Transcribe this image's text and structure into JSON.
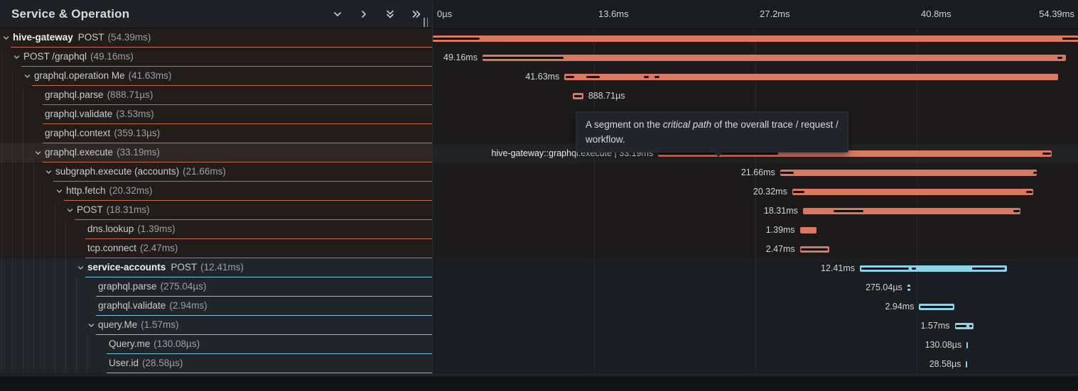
{
  "header": {
    "title": "Service & Operation",
    "icons": [
      "chevron-down-icon",
      "chevron-right-icon",
      "double-chevron-down-icon",
      "double-chevron-right-icon",
      "resize-grip-icon"
    ]
  },
  "timeline": {
    "total_ms": 54.39,
    "ticks": [
      {
        "label": "0µs",
        "percent": 0
      },
      {
        "label": "13.6ms",
        "percent": 25
      },
      {
        "label": "27.2ms",
        "percent": 50
      },
      {
        "label": "40.8ms",
        "percent": 75
      },
      {
        "label": "54.39ms",
        "percent": 100
      }
    ]
  },
  "colors": {
    "red_bar": "#d9795f",
    "blue_bar": "#8fd3e8",
    "red_line": "#c96a4f",
    "blue_line": "#7cc7df",
    "critical_path": "#0d0e10"
  },
  "tooltip": {
    "prefix": "A segment on the ",
    "emphasis": "critical path",
    "middle": " of the overall trace / request /",
    "line2": "workflow."
  },
  "rows": [
    {
      "service": "hive-gateway",
      "name": "POST",
      "duration": "(54.39ms)",
      "level": 0,
      "chevron": true,
      "color": "red",
      "hovered": false,
      "bar": [
        0,
        54.39
      ],
      "critical": [
        [
          0,
          3.95
        ],
        [
          53.1,
          54.39
        ]
      ],
      "label": "",
      "label_side": "none"
    },
    {
      "service": null,
      "name": "POST /graphql",
      "duration": "(49.16ms)",
      "level": 1,
      "chevron": true,
      "color": "red",
      "hovered": false,
      "bar": [
        4.19,
        53.35
      ],
      "critical": [
        [
          4.19,
          11.0
        ],
        [
          52.65,
          53.1
        ]
      ],
      "label": "49.16ms",
      "label_side": "left"
    },
    {
      "service": null,
      "name": "graphql.operation Me",
      "duration": "(41.63ms)",
      "level": 2,
      "chevron": true,
      "color": "red",
      "hovered": false,
      "bar": [
        11.1,
        52.73
      ],
      "critical": [
        [
          11.2,
          11.9
        ],
        [
          12.95,
          14.05
        ],
        [
          17.8,
          18.2
        ],
        [
          18.7,
          19.1
        ]
      ],
      "label": "41.63ms",
      "label_side": "left"
    },
    {
      "service": null,
      "name": "graphql.parse",
      "duration": "(888.71µs)",
      "level": 3,
      "chevron": false,
      "color": "red",
      "hovered": false,
      "bar": [
        11.8,
        12.69
      ],
      "critical": [
        [
          11.9,
          12.6
        ]
      ],
      "label": "888.71µs",
      "label_side": "right"
    },
    {
      "service": null,
      "name": "graphql.validate",
      "duration": "(3.53ms)",
      "level": 3,
      "chevron": false,
      "color": "red",
      "hovered": false,
      "bar": [
        14.2,
        17.73
      ],
      "critical": [
        [
          14.3,
          17.65
        ]
      ],
      "label": "3.53ms",
      "label_side": "right"
    },
    {
      "service": null,
      "name": "graphql.context",
      "duration": "(359.13µs)",
      "level": 3,
      "chevron": false,
      "color": "red",
      "hovered": false,
      "bar": [
        14.5,
        14.86
      ],
      "critical": [],
      "label": "359.13µs",
      "label_side": "right"
    },
    {
      "service": null,
      "name": "graphql.execute",
      "duration": "(33.19ms)",
      "level": 3,
      "chevron": true,
      "color": "red",
      "hovered": true,
      "bar": [
        19.0,
        52.19
      ],
      "critical": [
        [
          19.0,
          29.1
        ],
        [
          51.4,
          52.1
        ]
      ],
      "label": "hive-gateway::graphql.execute | 33.19ms",
      "label_side": "left"
    },
    {
      "service": null,
      "name": "subgraph.execute (accounts)",
      "duration": "(21.66ms)",
      "level": 4,
      "chevron": true,
      "color": "red",
      "hovered": false,
      "bar": [
        29.28,
        50.94
      ],
      "critical": [
        [
          29.3,
          30.4
        ],
        [
          50.6,
          50.9
        ]
      ],
      "label": "21.66ms",
      "label_side": "left"
    },
    {
      "service": null,
      "name": "http.fetch",
      "duration": "(20.32ms)",
      "level": 5,
      "chevron": true,
      "color": "red",
      "hovered": false,
      "bar": [
        30.3,
        50.62
      ],
      "critical": [
        [
          30.35,
          31.3
        ],
        [
          50.0,
          50.55
        ]
      ],
      "label": "20.32ms",
      "label_side": "left"
    },
    {
      "service": null,
      "name": "POST",
      "duration": "(18.31ms)",
      "level": 6,
      "chevron": true,
      "color": "red",
      "hovered": false,
      "bar": [
        31.2,
        49.51
      ],
      "critical": [
        [
          33.8,
          36.3
        ],
        [
          48.95,
          49.45
        ]
      ],
      "label": "18.31ms",
      "label_side": "left"
    },
    {
      "service": null,
      "name": "dns.lookup",
      "duration": "(1.39ms)",
      "level": 7,
      "chevron": false,
      "color": "red",
      "hovered": false,
      "bar": [
        30.95,
        32.34
      ],
      "critical": [],
      "label": "1.39ms",
      "label_side": "left"
    },
    {
      "service": null,
      "name": "tcp.connect",
      "duration": "(2.47ms)",
      "level": 7,
      "chevron": false,
      "color": "red",
      "hovered": false,
      "bar": [
        30.95,
        33.42
      ],
      "critical": [
        [
          31.05,
          33.3
        ]
      ],
      "label": "2.47ms",
      "label_side": "left"
    },
    {
      "service": "service-accounts",
      "name": "POST",
      "duration": "(12.41ms)",
      "level": 7,
      "chevron": true,
      "color": "blue",
      "hovered": false,
      "bar": [
        36.0,
        48.41
      ],
      "critical": [
        [
          36.1,
          40.15
        ],
        [
          40.4,
          40.75
        ],
        [
          45.45,
          48.2
        ]
      ],
      "label": "12.41ms",
      "label_side": "left"
    },
    {
      "service": null,
      "name": "graphql.parse",
      "duration": "(275.04µs)",
      "level": 8,
      "chevron": false,
      "color": "blue",
      "hovered": false,
      "bar": [
        40.0,
        40.28
      ],
      "critical": [
        [
          40.02,
          40.26
        ]
      ],
      "label": "275.04µs",
      "label_side": "left"
    },
    {
      "service": null,
      "name": "graphql.validate",
      "duration": "(2.94ms)",
      "level": 8,
      "chevron": false,
      "color": "blue",
      "hovered": false,
      "bar": [
        41.0,
        43.94
      ],
      "critical": [
        [
          41.1,
          43.85
        ]
      ],
      "label": "2.94ms",
      "label_side": "left"
    },
    {
      "service": null,
      "name": "query.Me",
      "duration": "(1.57ms)",
      "level": 8,
      "chevron": true,
      "color": "blue",
      "hovered": false,
      "bar": [
        44.0,
        45.57
      ],
      "critical": [
        [
          44.1,
          45.0
        ],
        [
          45.2,
          45.45
        ]
      ],
      "label": "1.57ms",
      "label_side": "left"
    },
    {
      "service": null,
      "name": "Query.me",
      "duration": "(130.08µs)",
      "level": 9,
      "chevron": false,
      "color": "blue",
      "hovered": false,
      "bar": [
        45.0,
        45.13
      ],
      "critical": [],
      "label": "130.08µs",
      "label_side": "left"
    },
    {
      "service": null,
      "name": "User.id",
      "duration": "(28.58µs)",
      "level": 9,
      "chevron": false,
      "color": "blue",
      "hovered": false,
      "bar": [
        44.95,
        45.0
      ],
      "critical": [],
      "label": "28.58µs",
      "label_side": "left"
    }
  ]
}
